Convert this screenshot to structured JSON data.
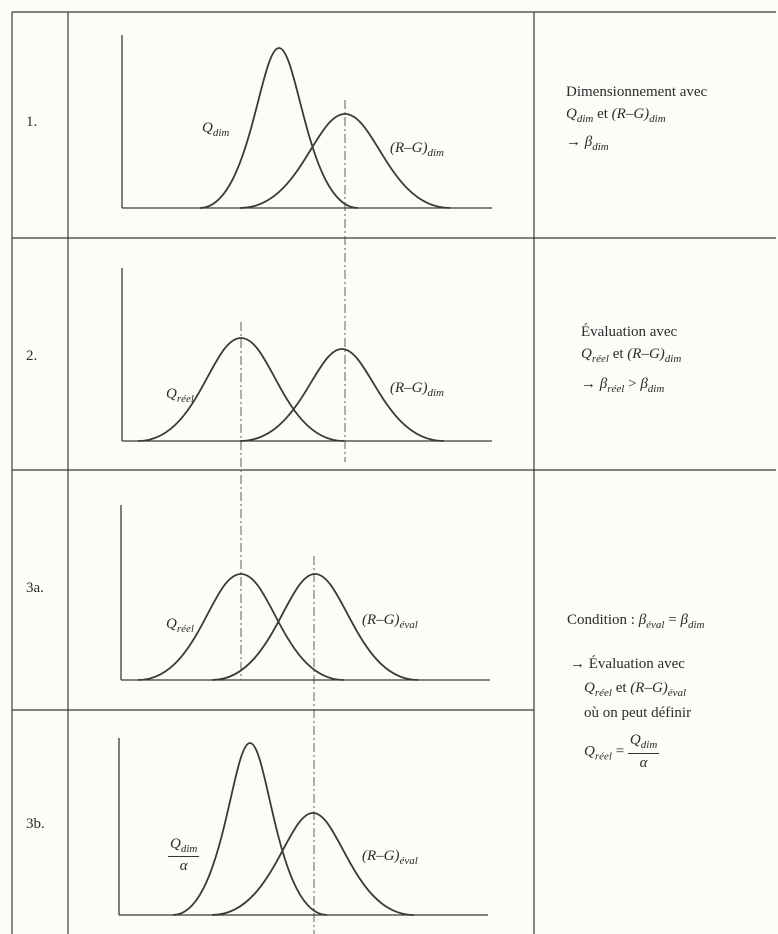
{
  "rows": [
    {
      "num": "1.",
      "curve_a": {
        "label": "Q",
        "sub": "dim"
      },
      "curve_b": {
        "label": "(R–G)",
        "sub": "dim"
      }
    },
    {
      "num": "2.",
      "curve_a": {
        "label": "Q",
        "sub": "réel"
      },
      "curve_b": {
        "label": "(R–G)",
        "sub": "dim"
      }
    },
    {
      "num": "3a.",
      "curve_a": {
        "label": "Q",
        "sub": "réel"
      },
      "curve_b": {
        "label": "(R–G)",
        "sub": "éval"
      }
    },
    {
      "num": "3b.",
      "curve_a": {
        "frac_num": "Q",
        "frac_num_sub": "dim",
        "frac_den": "α"
      },
      "curve_b": {
        "label": "(R–G)",
        "sub": "éval"
      }
    }
  ],
  "desc1": {
    "line1": "Dimensionnement avec",
    "q": "Q",
    "q_sub": "dim",
    "et": "et",
    "rg": "(R–G)",
    "rg_sub": "dim",
    "arrow": "→",
    "beta": "β",
    "beta_sub": "dim"
  },
  "desc2": {
    "line1": "Évaluation avec",
    "q": "Q",
    "q_sub": "réel",
    "et": "et",
    "rg": "(R–G)",
    "rg_sub": "dim",
    "arrow": "→",
    "beta1": "β",
    "beta1_sub": "réel",
    "gt": ">",
    "beta2": "β",
    "beta2_sub": "dim"
  },
  "desc3": {
    "cond": "Condition :",
    "beta1": "β",
    "beta1_sub": "éval",
    "eq": "=",
    "beta2": "β",
    "beta2_sub": "dim",
    "arrow": "→",
    "line2": "Évaluation avec",
    "q": "Q",
    "q_sub": "réel",
    "et": "et",
    "rg": "(R–G)",
    "rg_sub": "éval",
    "line4": "où on peut définir",
    "q2": "Q",
    "q2_sub": "réel",
    "eq2": "=",
    "fnum": "Q",
    "fnum_sub": "dim",
    "fden": "α"
  }
}
